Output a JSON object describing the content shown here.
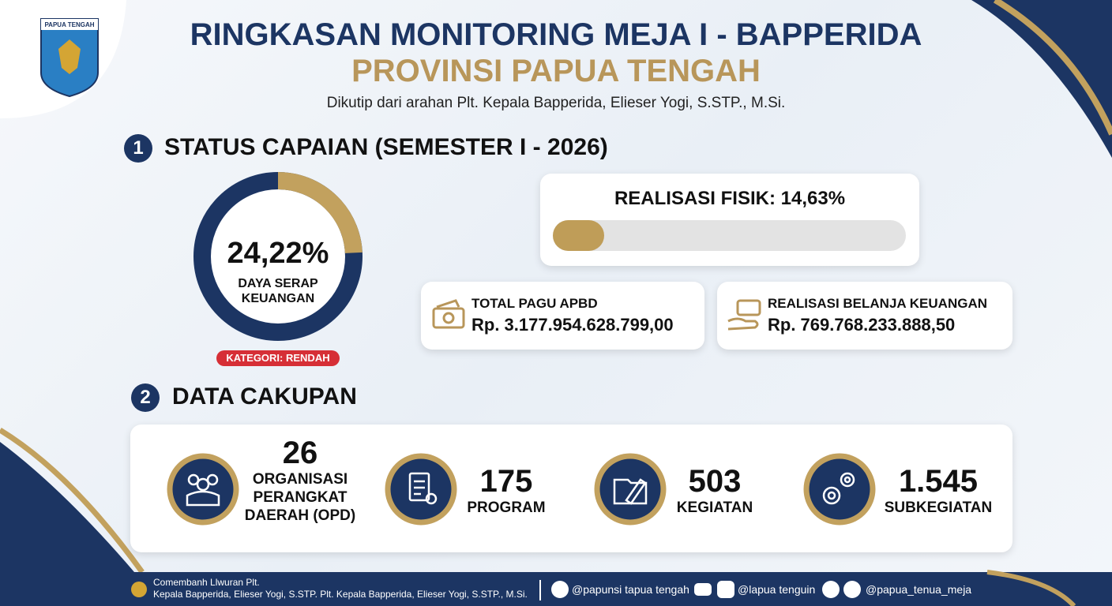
{
  "header": {
    "logo_text": "PAPUA TENGAH",
    "title": "RINGKASAN MONITORING MEJA I - BAPPERIDA",
    "subtitle": "PROVINSI PAPUA TENGAH",
    "quote": "Dikutip dari arahan Plt. Kepala Bapperida, Elieser Yogi, S.STP., M.Si."
  },
  "section1": {
    "number": "1",
    "title": "STATUS CAPAIAN (SEMESTER I - 2026)",
    "daya_serap": {
      "value": 24.22,
      "label": "24,22%",
      "caption": "DAYA SERAP KEUANGAN",
      "category": "KATEGORI: RENDAH"
    },
    "realisasi_fisik": {
      "label": "REALISASI FISIK:",
      "value": 14.63,
      "value_label": "14,63%"
    },
    "cards": [
      {
        "title": "TOTAL PAGU APBD",
        "amount": "Rp. 3.177.954.628.799,00"
      },
      {
        "title": "REALISASI BELANJA KEUANGAN",
        "amount": "Rp. 769.768.233.888,50"
      }
    ]
  },
  "section2": {
    "number": "2",
    "title": "DATA CAKUPAN",
    "items": [
      {
        "value": "26",
        "label": "ORGANISASI PERANGKAT DAERAH (OPD)"
      },
      {
        "value": "175",
        "label": "PROGRAM"
      },
      {
        "value": "503",
        "label": "KEGIATAN"
      },
      {
        "value": "1.545",
        "label": "SUBKEGIATAN"
      }
    ]
  },
  "footer": {
    "line1": "Comembanh Llwuran Plt.",
    "line2": "Kepala Bapperida, Elieser Yogi, S.STP. Plt. Kepala Bapperida, Elieser Yogi, S.STP., M.Si.",
    "twitter": "@papunsi tapua tengah",
    "instagram": "@lapua tenguin",
    "tiktok": "@papua_tenua_meja"
  }
}
